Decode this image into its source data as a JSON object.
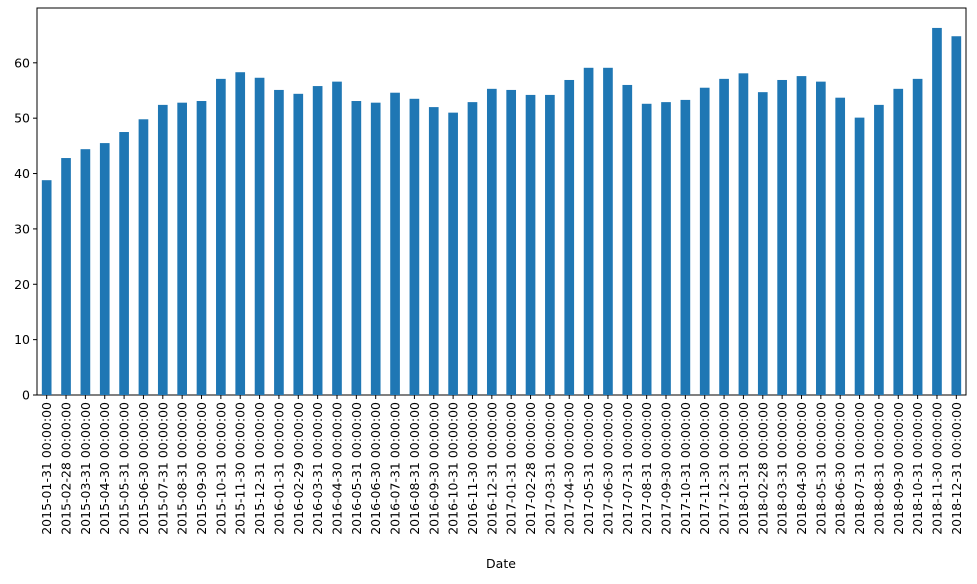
{
  "chart_data": {
    "type": "bar",
    "xlabel": "Date",
    "categories": [
      "2015-01-31 00:00:00",
      "2015-02-28 00:00:00",
      "2015-03-31 00:00:00",
      "2015-04-30 00:00:00",
      "2015-05-31 00:00:00",
      "2015-06-30 00:00:00",
      "2015-07-31 00:00:00",
      "2015-08-31 00:00:00",
      "2015-09-30 00:00:00",
      "2015-10-31 00:00:00",
      "2015-11-30 00:00:00",
      "2015-12-31 00:00:00",
      "2016-01-31 00:00:00",
      "2016-02-29 00:00:00",
      "2016-03-31 00:00:00",
      "2016-04-30 00:00:00",
      "2016-05-31 00:00:00",
      "2016-06-30 00:00:00",
      "2016-07-31 00:00:00",
      "2016-08-31 00:00:00",
      "2016-09-30 00:00:00",
      "2016-10-31 00:00:00",
      "2016-11-30 00:00:00",
      "2016-12-31 00:00:00",
      "2017-01-31 00:00:00",
      "2017-02-28 00:00:00",
      "2017-03-31 00:00:00",
      "2017-04-30 00:00:00",
      "2017-05-31 00:00:00",
      "2017-06-30 00:00:00",
      "2017-07-31 00:00:00",
      "2017-08-31 00:00:00",
      "2017-09-30 00:00:00",
      "2017-10-31 00:00:00",
      "2017-11-30 00:00:00",
      "2017-12-31 00:00:00",
      "2018-01-31 00:00:00",
      "2018-02-28 00:00:00",
      "2018-03-31 00:00:00",
      "2018-04-30 00:00:00",
      "2018-05-31 00:00:00",
      "2018-06-30 00:00:00",
      "2018-07-31 00:00:00",
      "2018-08-31 00:00:00",
      "2018-09-30 00:00:00",
      "2018-10-31 00:00:00",
      "2018-11-30 00:00:00",
      "2018-12-31 00:00:00"
    ],
    "values": [
      38.8,
      42.8,
      44.4,
      45.5,
      47.5,
      49.8,
      52.4,
      52.8,
      53.1,
      57.1,
      58.3,
      57.3,
      55.1,
      54.4,
      55.8,
      56.6,
      53.1,
      52.8,
      54.6,
      53.5,
      52.0,
      51.0,
      52.9,
      55.3,
      55.1,
      54.2,
      54.2,
      56.9,
      59.1,
      59.1,
      56.0,
      52.6,
      52.9,
      53.3,
      55.5,
      57.1,
      58.1,
      54.7,
      56.9,
      57.6,
      56.6,
      53.7,
      50.1,
      52.4,
      55.3,
      57.1,
      66.3,
      64.8
    ],
    "color": "#1f77b4",
    "ylim": [
      0,
      69.9
    ],
    "yticks": [
      0,
      10,
      20,
      30,
      40,
      50,
      60
    ]
  }
}
